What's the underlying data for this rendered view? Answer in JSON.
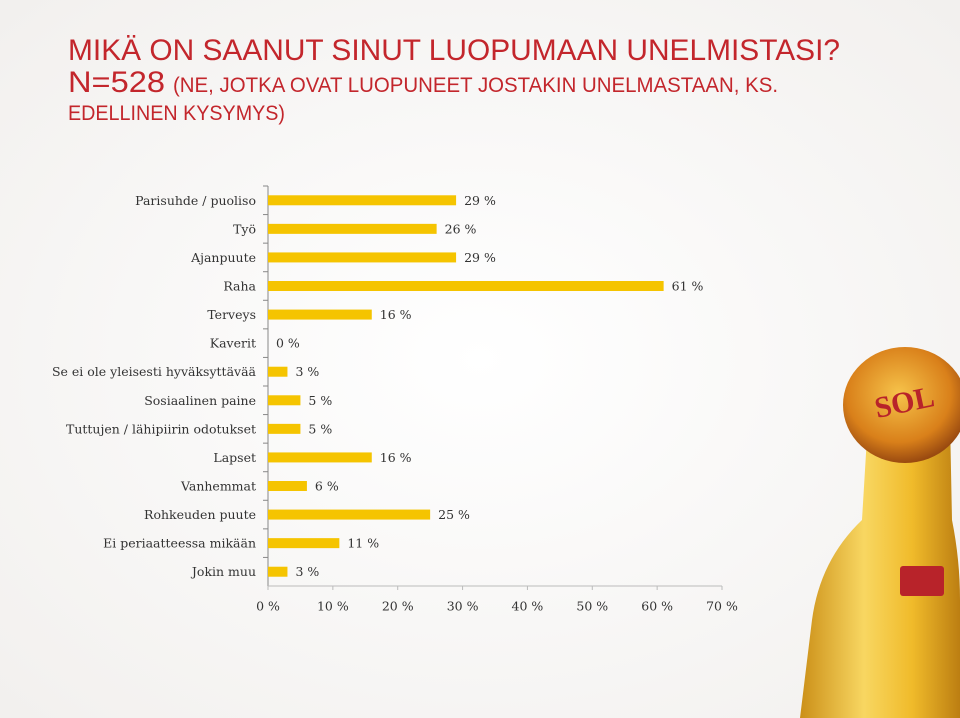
{
  "chart_data": {
    "type": "bar",
    "orientation": "horizontal",
    "title": "MIKÄ ON SAANUT SINUT LUOPUMAAN UNELMISTASI?",
    "subtitle": "N=528",
    "note": [
      "(NE, JOTKA OVAT LUOPUNEET JOSTAKIN UNELMASTAAN, KS.",
      "EDELLINEN KYSYMYS)"
    ],
    "categories": [
      "Parisuhde / puoliso",
      "Työ",
      "Ajanpuute",
      "Raha",
      "Terveys",
      "Kaverit",
      "Se ei ole yleisesti hyväksyttävää",
      "Sosiaalinen paine",
      "Tuttujen / lähipiirin odotukset",
      "Lapset",
      "Vanhemmat",
      "Rohkeuden puute",
      "Ei periaatteessa mikään",
      "Jokin muu"
    ],
    "values": [
      29,
      26,
      29,
      61,
      16,
      0,
      3,
      5,
      5,
      16,
      6,
      25,
      11,
      3
    ],
    "value_labels": [
      "29 %",
      "26 %",
      "29 %",
      "61 %",
      "16 %",
      "0 %",
      "3 %",
      "5 %",
      "5 %",
      "16 %",
      "6 %",
      "25 %",
      "11 %",
      "3 %"
    ],
    "color": "#f5c400",
    "xlim": [
      0,
      70
    ],
    "xticks": [
      {
        "value": 0,
        "label": "0 %"
      },
      {
        "value": 10,
        "label": "10 %"
      },
      {
        "value": 20,
        "label": "20 %"
      },
      {
        "value": 30,
        "label": "30 %"
      },
      {
        "value": 40,
        "label": "40 %"
      },
      {
        "value": 50,
        "label": "50 %"
      },
      {
        "value": 60,
        "label": "60 %"
      },
      {
        "value": 70,
        "label": "70 %"
      }
    ],
    "grid": false
  }
}
